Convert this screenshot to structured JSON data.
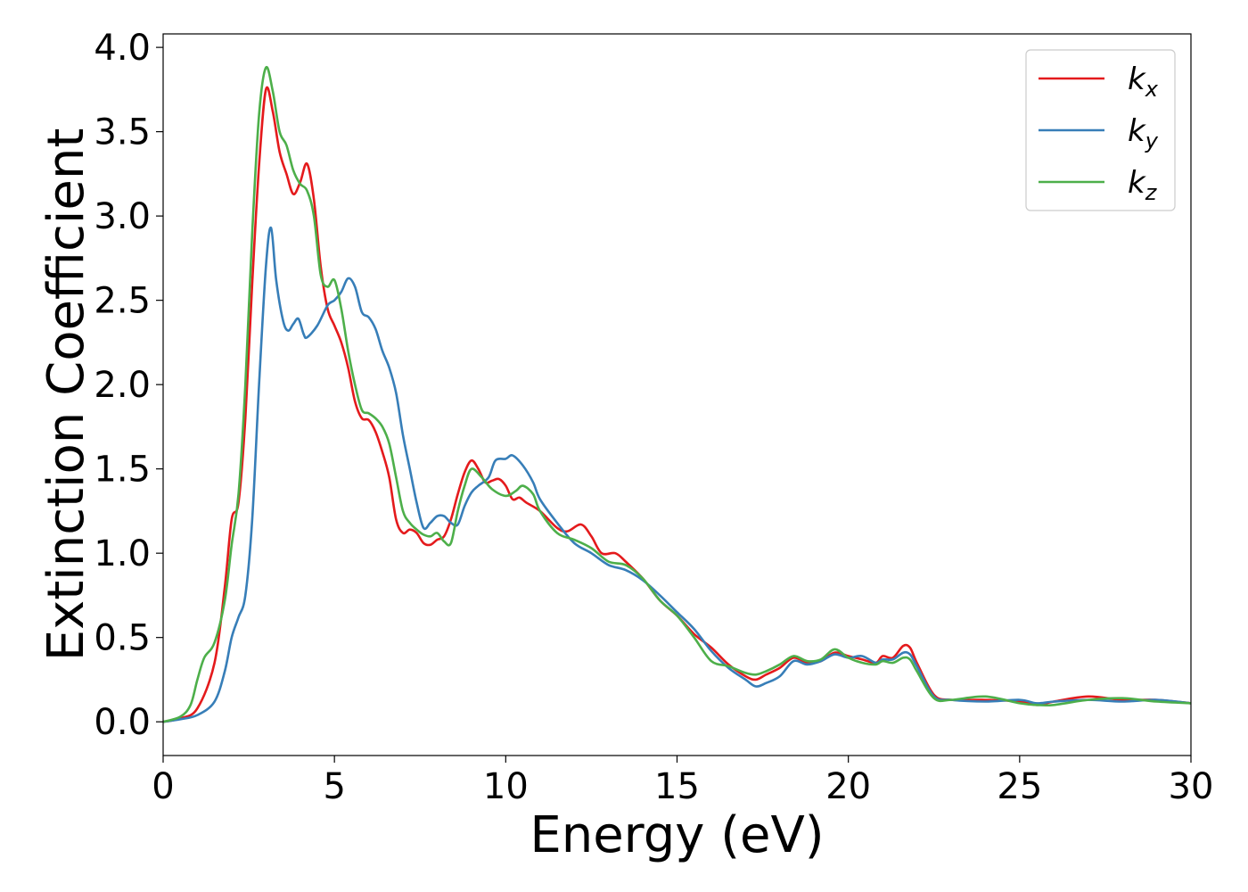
{
  "chart_data": {
    "type": "line",
    "title": "",
    "xlabel": "Energy (eV)",
    "ylabel": "Extinction Coefficient",
    "xlim": [
      0,
      30
    ],
    "ylim": [
      -0.2,
      4.08
    ],
    "xticks": [
      0,
      5,
      10,
      15,
      20,
      25,
      30
    ],
    "xtick_labels": [
      "0",
      "5",
      "10",
      "15",
      "20",
      "25",
      "30"
    ],
    "yticks": [
      0.0,
      0.5,
      1.0,
      1.5,
      2.0,
      2.5,
      3.0,
      3.5,
      4.0
    ],
    "ytick_labels": [
      "0.0",
      "0.5",
      "1.0",
      "1.5",
      "2.0",
      "2.5",
      "3.0",
      "3.5",
      "4.0"
    ],
    "grid": false,
    "legend_position": "top-right",
    "series": [
      {
        "name": "k_x",
        "label_main": "k",
        "label_sub": "x",
        "color": "#e41a1c",
        "points": [
          [
            0,
            0
          ],
          [
            0.5,
            0.02
          ],
          [
            1.0,
            0.08
          ],
          [
            1.5,
            0.35
          ],
          [
            1.8,
            0.8
          ],
          [
            2.0,
            1.2
          ],
          [
            2.2,
            1.3
          ],
          [
            2.4,
            1.8
          ],
          [
            2.6,
            2.6
          ],
          [
            2.8,
            3.3
          ],
          [
            3.0,
            3.75
          ],
          [
            3.2,
            3.62
          ],
          [
            3.4,
            3.38
          ],
          [
            3.6,
            3.25
          ],
          [
            3.8,
            3.13
          ],
          [
            4.0,
            3.2
          ],
          [
            4.2,
            3.31
          ],
          [
            4.4,
            3.1
          ],
          [
            4.6,
            2.7
          ],
          [
            4.8,
            2.45
          ],
          [
            5.0,
            2.35
          ],
          [
            5.2,
            2.25
          ],
          [
            5.4,
            2.1
          ],
          [
            5.6,
            1.9
          ],
          [
            5.8,
            1.8
          ],
          [
            6.0,
            1.79
          ],
          [
            6.2,
            1.72
          ],
          [
            6.4,
            1.6
          ],
          [
            6.6,
            1.45
          ],
          [
            6.8,
            1.2
          ],
          [
            7.0,
            1.12
          ],
          [
            7.2,
            1.14
          ],
          [
            7.4,
            1.12
          ],
          [
            7.6,
            1.06
          ],
          [
            7.8,
            1.05
          ],
          [
            8.0,
            1.08
          ],
          [
            8.2,
            1.1
          ],
          [
            8.4,
            1.2
          ],
          [
            8.6,
            1.35
          ],
          [
            8.8,
            1.48
          ],
          [
            9.0,
            1.55
          ],
          [
            9.2,
            1.5
          ],
          [
            9.4,
            1.42
          ],
          [
            9.6,
            1.43
          ],
          [
            9.8,
            1.44
          ],
          [
            10.0,
            1.4
          ],
          [
            10.2,
            1.32
          ],
          [
            10.4,
            1.33
          ],
          [
            10.6,
            1.3
          ],
          [
            11.0,
            1.25
          ],
          [
            11.5,
            1.15
          ],
          [
            11.8,
            1.13
          ],
          [
            12.2,
            1.17
          ],
          [
            12.5,
            1.1
          ],
          [
            12.8,
            1.0
          ],
          [
            13.2,
            1.0
          ],
          [
            13.5,
            0.95
          ],
          [
            14.0,
            0.85
          ],
          [
            14.5,
            0.72
          ],
          [
            15.0,
            0.63
          ],
          [
            15.5,
            0.52
          ],
          [
            16.0,
            0.44
          ],
          [
            16.5,
            0.34
          ],
          [
            17.0,
            0.27
          ],
          [
            17.3,
            0.25
          ],
          [
            17.6,
            0.28
          ],
          [
            18.0,
            0.32
          ],
          [
            18.4,
            0.38
          ],
          [
            18.8,
            0.35
          ],
          [
            19.2,
            0.36
          ],
          [
            19.6,
            0.41
          ],
          [
            20.0,
            0.39
          ],
          [
            20.4,
            0.37
          ],
          [
            20.8,
            0.35
          ],
          [
            21.0,
            0.39
          ],
          [
            21.3,
            0.38
          ],
          [
            21.6,
            0.45
          ],
          [
            21.8,
            0.44
          ],
          [
            22.0,
            0.35
          ],
          [
            22.5,
            0.16
          ],
          [
            23.0,
            0.13
          ],
          [
            24.0,
            0.13
          ],
          [
            25.0,
            0.12
          ],
          [
            25.5,
            0.1
          ],
          [
            26.0,
            0.12
          ],
          [
            27.0,
            0.15
          ],
          [
            28.0,
            0.13
          ],
          [
            29.0,
            0.13
          ],
          [
            30.0,
            0.11
          ]
        ]
      },
      {
        "name": "k_y",
        "label_main": "k",
        "label_sub": "y",
        "color": "#377eb8",
        "points": [
          [
            0,
            0
          ],
          [
            0.5,
            0.015
          ],
          [
            1.0,
            0.04
          ],
          [
            1.5,
            0.12
          ],
          [
            1.8,
            0.3
          ],
          [
            2.0,
            0.5
          ],
          [
            2.2,
            0.62
          ],
          [
            2.4,
            0.75
          ],
          [
            2.6,
            1.2
          ],
          [
            2.8,
            2.0
          ],
          [
            3.0,
            2.7
          ],
          [
            3.15,
            2.93
          ],
          [
            3.3,
            2.62
          ],
          [
            3.5,
            2.38
          ],
          [
            3.65,
            2.32
          ],
          [
            3.8,
            2.36
          ],
          [
            3.95,
            2.39
          ],
          [
            4.1,
            2.3
          ],
          [
            4.2,
            2.28
          ],
          [
            4.5,
            2.35
          ],
          [
            4.8,
            2.47
          ],
          [
            5.0,
            2.5
          ],
          [
            5.2,
            2.55
          ],
          [
            5.4,
            2.63
          ],
          [
            5.6,
            2.58
          ],
          [
            5.8,
            2.43
          ],
          [
            6.0,
            2.4
          ],
          [
            6.2,
            2.33
          ],
          [
            6.4,
            2.2
          ],
          [
            6.6,
            2.1
          ],
          [
            6.8,
            1.95
          ],
          [
            7.0,
            1.7
          ],
          [
            7.2,
            1.5
          ],
          [
            7.4,
            1.3
          ],
          [
            7.6,
            1.15
          ],
          [
            7.8,
            1.18
          ],
          [
            8.0,
            1.22
          ],
          [
            8.2,
            1.22
          ],
          [
            8.4,
            1.18
          ],
          [
            8.6,
            1.17
          ],
          [
            8.8,
            1.28
          ],
          [
            9.0,
            1.36
          ],
          [
            9.2,
            1.4
          ],
          [
            9.5,
            1.45
          ],
          [
            9.7,
            1.55
          ],
          [
            10.0,
            1.56
          ],
          [
            10.2,
            1.58
          ],
          [
            10.5,
            1.52
          ],
          [
            10.8,
            1.42
          ],
          [
            11.0,
            1.32
          ],
          [
            11.5,
            1.18
          ],
          [
            12.0,
            1.06
          ],
          [
            12.5,
            1.0
          ],
          [
            13.0,
            0.93
          ],
          [
            13.5,
            0.9
          ],
          [
            14.0,
            0.84
          ],
          [
            14.5,
            0.75
          ],
          [
            15.0,
            0.65
          ],
          [
            15.5,
            0.55
          ],
          [
            16.0,
            0.42
          ],
          [
            16.5,
            0.32
          ],
          [
            17.0,
            0.25
          ],
          [
            17.3,
            0.21
          ],
          [
            17.6,
            0.23
          ],
          [
            18.0,
            0.27
          ],
          [
            18.4,
            0.36
          ],
          [
            18.8,
            0.34
          ],
          [
            19.2,
            0.36
          ],
          [
            19.6,
            0.4
          ],
          [
            20.0,
            0.38
          ],
          [
            20.4,
            0.39
          ],
          [
            20.8,
            0.35
          ],
          [
            21.0,
            0.37
          ],
          [
            21.3,
            0.37
          ],
          [
            21.6,
            0.41
          ],
          [
            21.8,
            0.4
          ],
          [
            22.0,
            0.33
          ],
          [
            22.5,
            0.15
          ],
          [
            23.0,
            0.13
          ],
          [
            24.0,
            0.12
          ],
          [
            25.0,
            0.13
          ],
          [
            25.5,
            0.11
          ],
          [
            26.0,
            0.12
          ],
          [
            27.0,
            0.13
          ],
          [
            28.0,
            0.12
          ],
          [
            29.0,
            0.13
          ],
          [
            30.0,
            0.11
          ]
        ]
      },
      {
        "name": "k_z",
        "label_main": "k",
        "label_sub": "z",
        "color": "#4daf4a",
        "points": [
          [
            0,
            0
          ],
          [
            0.5,
            0.03
          ],
          [
            0.8,
            0.1
          ],
          [
            1.0,
            0.25
          ],
          [
            1.2,
            0.38
          ],
          [
            1.5,
            0.47
          ],
          [
            1.8,
            0.72
          ],
          [
            2.0,
            1.05
          ],
          [
            2.2,
            1.35
          ],
          [
            2.4,
            2.0
          ],
          [
            2.6,
            2.9
          ],
          [
            2.8,
            3.6
          ],
          [
            3.0,
            3.88
          ],
          [
            3.2,
            3.74
          ],
          [
            3.4,
            3.5
          ],
          [
            3.6,
            3.42
          ],
          [
            3.8,
            3.27
          ],
          [
            4.0,
            3.19
          ],
          [
            4.2,
            3.15
          ],
          [
            4.4,
            3.0
          ],
          [
            4.6,
            2.65
          ],
          [
            4.8,
            2.58
          ],
          [
            5.0,
            2.62
          ],
          [
            5.2,
            2.45
          ],
          [
            5.4,
            2.2
          ],
          [
            5.6,
            2.0
          ],
          [
            5.8,
            1.85
          ],
          [
            6.0,
            1.83
          ],
          [
            6.2,
            1.8
          ],
          [
            6.4,
            1.75
          ],
          [
            6.6,
            1.65
          ],
          [
            6.8,
            1.45
          ],
          [
            7.0,
            1.25
          ],
          [
            7.2,
            1.18
          ],
          [
            7.4,
            1.14
          ],
          [
            7.6,
            1.11
          ],
          [
            7.8,
            1.1
          ],
          [
            8.0,
            1.12
          ],
          [
            8.2,
            1.07
          ],
          [
            8.4,
            1.06
          ],
          [
            8.6,
            1.25
          ],
          [
            8.8,
            1.4
          ],
          [
            9.0,
            1.5
          ],
          [
            9.3,
            1.45
          ],
          [
            9.6,
            1.38
          ],
          [
            10.0,
            1.34
          ],
          [
            10.3,
            1.37
          ],
          [
            10.5,
            1.4
          ],
          [
            10.8,
            1.35
          ],
          [
            11.0,
            1.25
          ],
          [
            11.5,
            1.12
          ],
          [
            12.0,
            1.08
          ],
          [
            12.5,
            1.03
          ],
          [
            13.0,
            0.95
          ],
          [
            13.5,
            0.93
          ],
          [
            14.0,
            0.85
          ],
          [
            14.5,
            0.72
          ],
          [
            15.0,
            0.63
          ],
          [
            15.5,
            0.5
          ],
          [
            16.0,
            0.36
          ],
          [
            16.5,
            0.33
          ],
          [
            17.0,
            0.29
          ],
          [
            17.3,
            0.28
          ],
          [
            17.6,
            0.3
          ],
          [
            18.0,
            0.34
          ],
          [
            18.4,
            0.39
          ],
          [
            18.8,
            0.36
          ],
          [
            19.2,
            0.37
          ],
          [
            19.6,
            0.43
          ],
          [
            20.0,
            0.38
          ],
          [
            20.4,
            0.35
          ],
          [
            20.8,
            0.34
          ],
          [
            21.0,
            0.36
          ],
          [
            21.3,
            0.35
          ],
          [
            21.6,
            0.38
          ],
          [
            21.8,
            0.37
          ],
          [
            22.0,
            0.3
          ],
          [
            22.5,
            0.14
          ],
          [
            23.0,
            0.13
          ],
          [
            24.0,
            0.15
          ],
          [
            25.0,
            0.11
          ],
          [
            25.5,
            0.1
          ],
          [
            26.0,
            0.1
          ],
          [
            27.0,
            0.13
          ],
          [
            28.0,
            0.14
          ],
          [
            29.0,
            0.12
          ],
          [
            30.0,
            0.11
          ]
        ]
      }
    ]
  }
}
